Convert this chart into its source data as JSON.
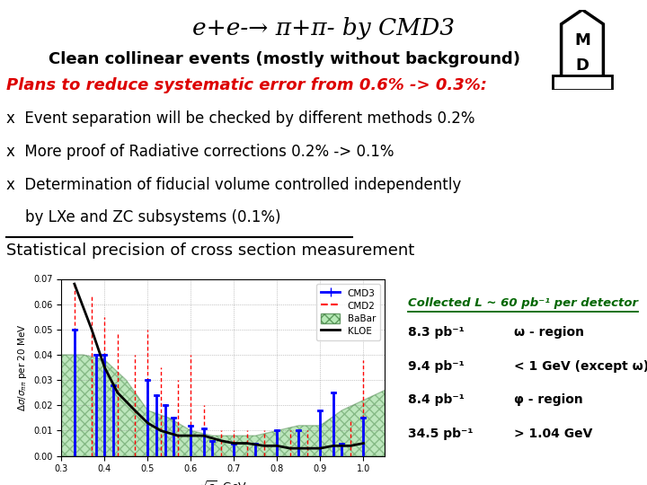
{
  "title": "e+e-→ π+π- by CMD3",
  "subtitle": "Clean collinear events (mostly without background)",
  "bg_color": "#ffffff",
  "text_lines": [
    {
      "text": "Plans to reduce systematic error from 0.6% -> 0.3%:",
      "color": "#dd0000",
      "bold": true,
      "italic": true,
      "size": 13
    },
    {
      "text": "x  Event separation will be checked by different methods 0.2%",
      "color": "#000000",
      "bold": false,
      "italic": false,
      "size": 12
    },
    {
      "text": "x  More proof of Radiative corrections 0.2% -> 0.1%",
      "color": "#000000",
      "bold": false,
      "italic": false,
      "size": 12
    },
    {
      "text": "x  Determination of fiducial volume controlled independently",
      "color": "#000000",
      "bold": false,
      "italic": false,
      "size": 12
    },
    {
      "text": "    by LXe and ZC subsystems (0.1%)",
      "color": "#000000",
      "bold": false,
      "italic": false,
      "size": 12
    },
    {
      "text": "Statistical precision of cross section measurement",
      "color": "#000000",
      "bold": false,
      "italic": false,
      "size": 13
    }
  ],
  "plot_title": "Statistical precision of cross section measurement",
  "xlabel": "$\\sqrt{s}$, GeV",
  "ylabel": "$\\Delta\\sigma/\\sigma_{\\pi\\pi}$ per 20 MeV",
  "xlim": [
    0.3,
    1.05
  ],
  "ylim": [
    0.0,
    0.07
  ],
  "yticks": [
    0.0,
    0.01,
    0.02,
    0.03,
    0.04,
    0.05,
    0.06,
    0.07
  ],
  "xticks": [
    0.3,
    0.4,
    0.5,
    0.6,
    0.7,
    0.8,
    0.9,
    1.0
  ],
  "cmd3_x": [
    0.33,
    0.38,
    0.4,
    0.42,
    0.5,
    0.52,
    0.54,
    0.56,
    0.6,
    0.63,
    0.65,
    0.7,
    0.75,
    0.8,
    0.85,
    0.9,
    0.93,
    0.95,
    1.0
  ],
  "cmd3_y": [
    0.05,
    0.04,
    0.04,
    0.028,
    0.03,
    0.024,
    0.02,
    0.015,
    0.012,
    0.011,
    0.006,
    0.005,
    0.005,
    0.01,
    0.01,
    0.018,
    0.025,
    0.005,
    0.015
  ],
  "cmd2_x": [
    0.33,
    0.37,
    0.4,
    0.43,
    0.47,
    0.5,
    0.53,
    0.57,
    0.6,
    0.63,
    0.67,
    0.7,
    0.73,
    0.77,
    0.8,
    0.83,
    0.87,
    0.9,
    0.93,
    0.97,
    1.0
  ],
  "cmd2_y": [
    0.068,
    0.063,
    0.055,
    0.048,
    0.04,
    0.05,
    0.035,
    0.03,
    0.04,
    0.02,
    0.01,
    0.01,
    0.01,
    0.01,
    0.01,
    0.01,
    0.01,
    0.01,
    0.025,
    0.014,
    0.038
  ],
  "kloe_x": [
    0.33,
    0.37,
    0.4,
    0.43,
    0.47,
    0.5,
    0.53,
    0.57,
    0.6,
    0.63,
    0.67,
    0.7,
    0.73,
    0.77,
    0.8,
    0.83,
    0.87,
    0.9,
    0.93,
    0.97,
    1.0
  ],
  "kloe_y": [
    0.068,
    0.05,
    0.035,
    0.025,
    0.018,
    0.013,
    0.01,
    0.008,
    0.008,
    0.008,
    0.006,
    0.005,
    0.005,
    0.004,
    0.004,
    0.003,
    0.003,
    0.003,
    0.004,
    0.004,
    0.005
  ],
  "babar_x": [
    0.3,
    0.35,
    0.4,
    0.45,
    0.5,
    0.55,
    0.6,
    0.65,
    0.7,
    0.75,
    0.8,
    0.85,
    0.9,
    0.95,
    1.0,
    1.05
  ],
  "babar_y": [
    0.04,
    0.04,
    0.038,
    0.03,
    0.018,
    0.015,
    0.01,
    0.008,
    0.008,
    0.008,
    0.01,
    0.012,
    0.012,
    0.018,
    0.022,
    0.026
  ],
  "annotation_lines": [
    [
      "8.3 pb⁻¹",
      "ω - region"
    ],
    [
      "9.4 pb⁻¹",
      "< 1 GeV (except ω)"
    ],
    [
      "8.4 pb⁻¹",
      "φ - region"
    ],
    [
      "34.5 pb⁻¹",
      "> 1.04 GeV"
    ]
  ]
}
